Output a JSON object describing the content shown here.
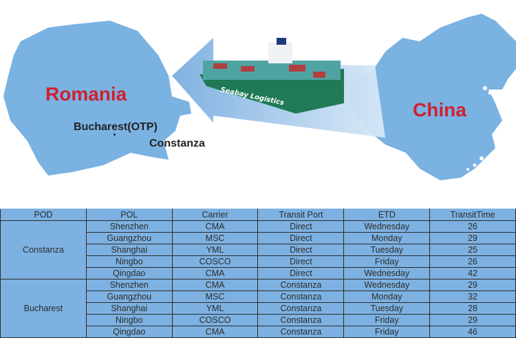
{
  "map": {
    "origin_country": "China",
    "destination_country": "Romania",
    "cities": [
      "Bucharest(OTP)",
      "Constanza"
    ],
    "ship_brand": "Seabay Logistics",
    "colors": {
      "land": "#7ab2e2",
      "country_label": "#d0202e",
      "arrow": "#8ab8e6"
    }
  },
  "table": {
    "headers": [
      "POD",
      "POL",
      "Carrier",
      "Transit Port",
      "ETD",
      "TransitTime"
    ],
    "groups": [
      {
        "pod": "Constanza",
        "rows": [
          [
            "Shenzhen",
            "CMA",
            "Direct",
            "Wednesday",
            "26"
          ],
          [
            "Guangzhou",
            "MSC",
            "Direct",
            "Monday",
            "29"
          ],
          [
            "Shanghai",
            "YML",
            "Direct",
            "Tuesday",
            "25"
          ],
          [
            "Ningbo",
            "COSCO",
            "Direct",
            "Friday",
            "26"
          ],
          [
            "Qingdao",
            "CMA",
            "Direct",
            "Wednesday",
            "42"
          ]
        ]
      },
      {
        "pod": "Bucharest",
        "rows": [
          [
            "Shenzhen",
            "CMA",
            "Constanza",
            "Wednesday",
            "29"
          ],
          [
            "Guangzhou",
            "MSC",
            "Constanza",
            "Monday",
            "32"
          ],
          [
            "Shanghai",
            "YML",
            "Constanza",
            "Tuesday",
            "28"
          ],
          [
            "Ningbo",
            "COSCO",
            "Constanza",
            "Friday",
            "29"
          ],
          [
            "Qingdao",
            "CMA",
            "Constanza",
            "Friday",
            "46"
          ]
        ]
      }
    ]
  }
}
